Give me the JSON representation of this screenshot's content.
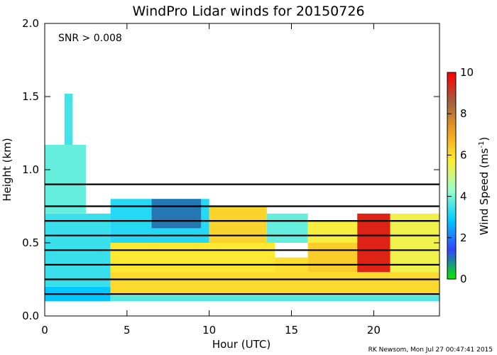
{
  "chart_data": {
    "type": "heatmap",
    "title": "WindPro Lidar winds for 20150726",
    "annotation": "SNR > 0.008",
    "xlabel": "Hour (UTC)",
    "ylabel": "Height (km)",
    "xlim": [
      0,
      24
    ],
    "ylim": [
      0.0,
      2.0
    ],
    "x_ticks": [
      "0",
      "5",
      "10",
      "15",
      "20"
    ],
    "y_ticks": [
      "0.0",
      "0.5",
      "1.0",
      "1.5",
      "2.0"
    ],
    "colorbar": {
      "label_main": "Wind Speed (ms",
      "label_sup": "-1",
      "label_end": ")",
      "range": [
        0,
        10
      ],
      "ticks": [
        "0",
        "2",
        "4",
        "6",
        "8",
        "10"
      ],
      "colors": [
        "#00ee00",
        "#3344ff",
        "#00ccff",
        "#99ffcc",
        "#ffee33",
        "#f0a020",
        "#a06040",
        "#ff0000"
      ]
    },
    "credit": "RK Newsom, Mon Jul 27 00:47:41 2015",
    "speed_regions": [
      {
        "x": [
          0.0,
          4.0
        ],
        "y": [
          0.1,
          0.2
        ],
        "value": 2.8
      },
      {
        "x": [
          0.0,
          4.0
        ],
        "y": [
          0.2,
          0.7
        ],
        "value": 3.4
      },
      {
        "x": [
          0.0,
          2.5
        ],
        "y": [
          0.7,
          1.17
        ],
        "value": 3.8
      },
      {
        "x": [
          1.2,
          1.7
        ],
        "y": [
          1.17,
          1.52
        ],
        "value": 3.5
      },
      {
        "x": [
          4.0,
          24.0
        ],
        "y": [
          0.1,
          0.14
        ],
        "value": 3.6
      },
      {
        "x": [
          4.0,
          24.0
        ],
        "y": [
          0.14,
          0.3
        ],
        "value": 6.1
      },
      {
        "x": [
          4.0,
          14.0
        ],
        "y": [
          0.3,
          0.5
        ],
        "value": 5.8
      },
      {
        "x": [
          14.0,
          16.0
        ],
        "y": [
          0.3,
          0.4
        ],
        "value": 6.0
      },
      {
        "x": [
          16.0,
          19.0
        ],
        "y": [
          0.3,
          0.5
        ],
        "value": 6.3
      },
      {
        "x": [
          19.0,
          21.0
        ],
        "y": [
          0.3,
          0.7
        ],
        "value": 9.5
      },
      {
        "x": [
          21.0,
          24.0
        ],
        "y": [
          0.3,
          0.7
        ],
        "value": 5.5
      },
      {
        "x": [
          4.0,
          10.0
        ],
        "y": [
          0.5,
          0.8
        ],
        "value": 3.2
      },
      {
        "x": [
          6.5,
          9.5
        ],
        "y": [
          0.6,
          0.8
        ],
        "value": 1.0
      },
      {
        "x": [
          10.0,
          13.5
        ],
        "y": [
          0.5,
          0.75
        ],
        "value": 6.2
      },
      {
        "x": [
          13.5,
          16.0
        ],
        "y": [
          0.5,
          0.7
        ],
        "value": 3.8
      },
      {
        "x": [
          16.0,
          19.0
        ],
        "y": [
          0.5,
          0.65
        ],
        "value": 5.6
      }
    ],
    "wind_barb_levels_km": [
      0.15,
      0.25,
      0.35,
      0.45,
      0.55,
      0.65,
      0.75,
      0.9
    ]
  }
}
